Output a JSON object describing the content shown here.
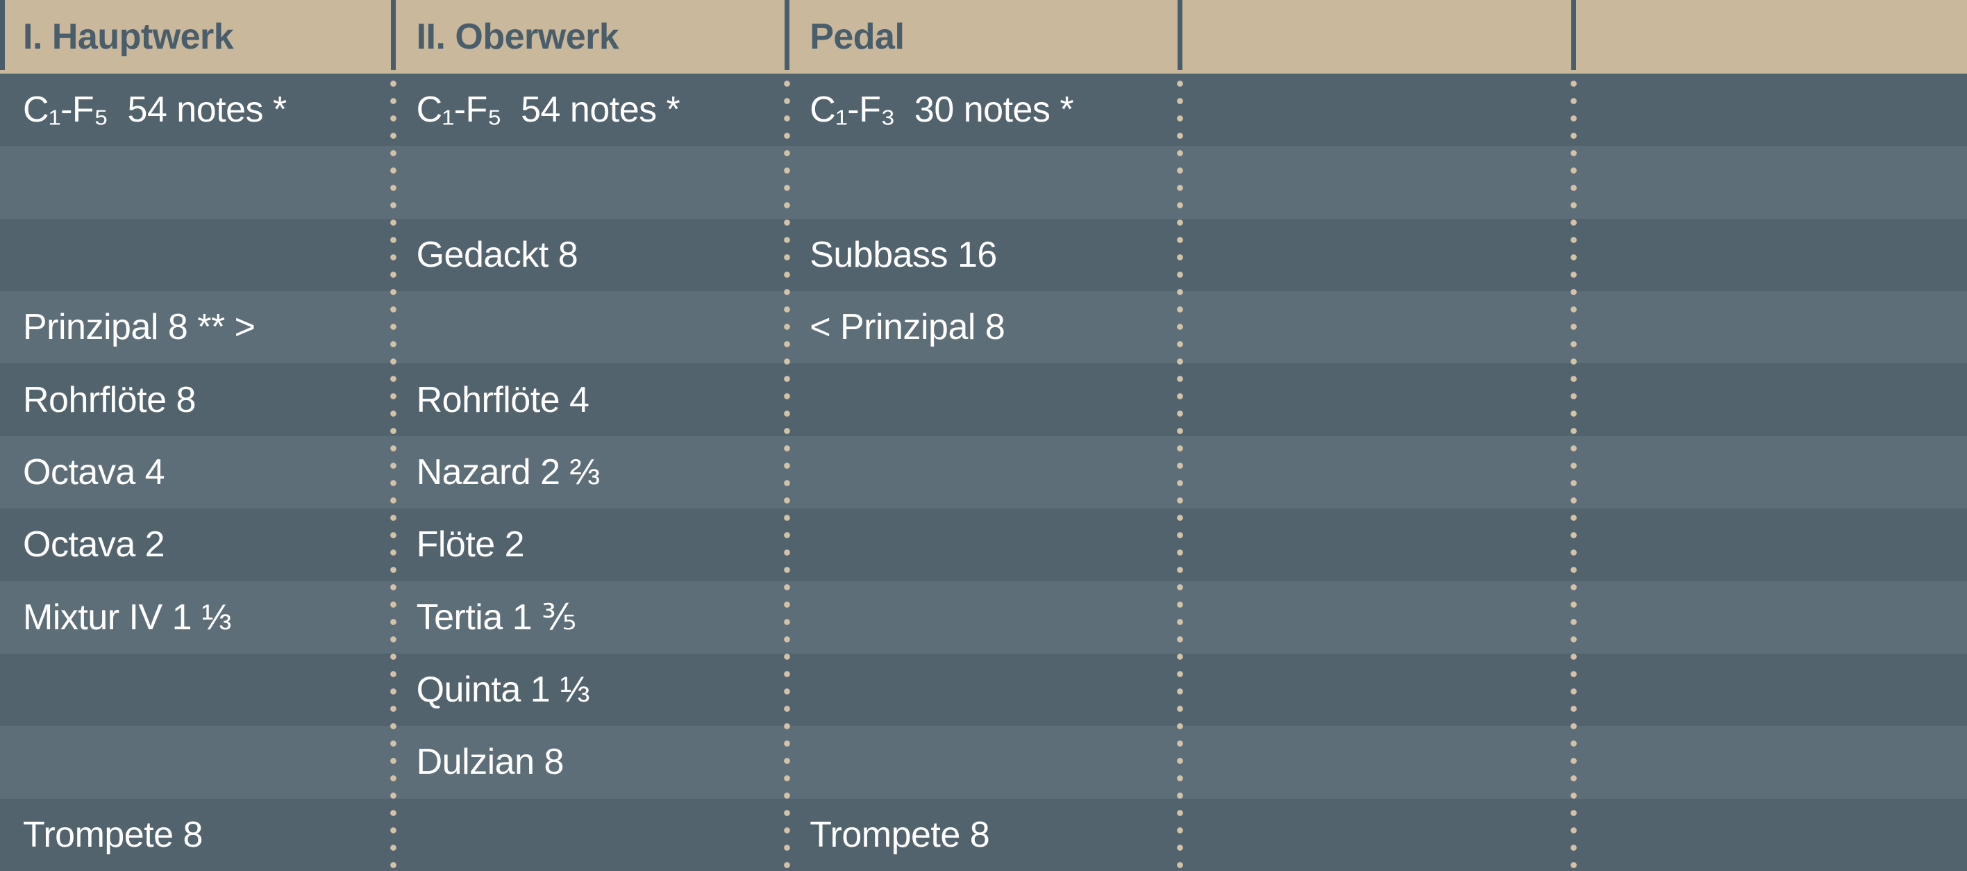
{
  "colors": {
    "tan": "#c9b89c",
    "slate": "#4a5d6a",
    "row-dark": "#53636e",
    "row-light": "#5e6e79",
    "dot": "#d3c3a6",
    "text-white": "#ffffff"
  },
  "table": {
    "headers": [
      "I. Hauptwerk",
      "II. Oberwerk",
      "Pedal",
      "",
      ""
    ],
    "rows": [
      {
        "cells": [
          "C₁-F₅  54 notes *",
          "C₁-F₅  54 notes *",
          "C₁-F₃  30 notes *",
          "",
          ""
        ]
      },
      {
        "cells": [
          "",
          "",
          "",
          "",
          ""
        ]
      },
      {
        "cells": [
          "",
          "Gedackt 8",
          "Subbass 16",
          "",
          ""
        ]
      },
      {
        "cells": [
          "Prinzipal 8 ** >",
          "",
          "< Prinzipal 8",
          "",
          ""
        ]
      },
      {
        "cells": [
          "Rohrflöte 8",
          "Rohrflöte 4",
          "",
          "",
          ""
        ]
      },
      {
        "cells": [
          "Octava 4",
          "Nazard 2 ⅔",
          "",
          "",
          ""
        ]
      },
      {
        "cells": [
          "Octava 2",
          "Flöte 2",
          "",
          "",
          ""
        ]
      },
      {
        "cells": [
          "Mixtur IV 1 ⅓",
          "Tertia 1 ⅗",
          "",
          "",
          ""
        ]
      },
      {
        "cells": [
          "",
          "Quinta 1 ⅓",
          "",
          "",
          ""
        ]
      },
      {
        "cells": [
          "",
          "Dulzian 8",
          "",
          "",
          ""
        ]
      },
      {
        "cells": [
          "Trompete 8",
          "",
          "Trompete 8",
          "",
          ""
        ]
      }
    ]
  }
}
